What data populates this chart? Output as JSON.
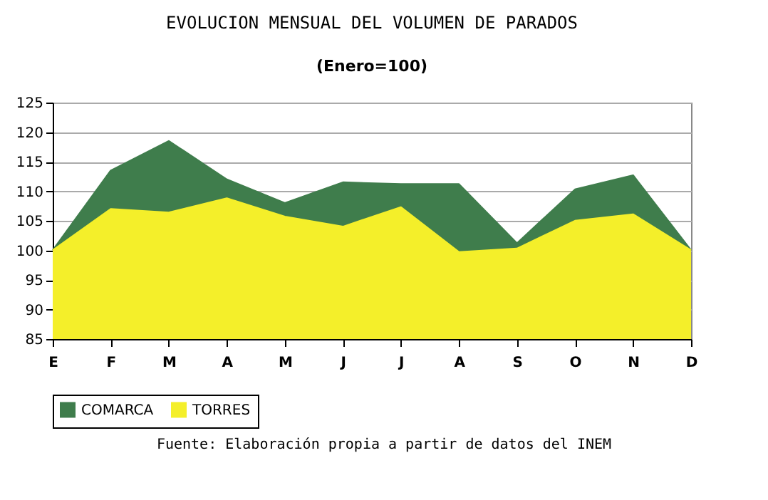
{
  "chart_data": {
    "type": "area",
    "title": "EVOLUCION MENSUAL DEL VOLUMEN DE PARADOS",
    "subtitle": "(Enero=100)",
    "categories": [
      "E",
      "F",
      "M",
      "A",
      "M",
      "J",
      "J",
      "A",
      "S",
      "O",
      "N",
      "D"
    ],
    "series": [
      {
        "name": "COMARCA",
        "color": "#3f7d4c",
        "values": [
          100,
          113.5,
          118.5,
          112,
          108,
          111.5,
          111.2,
          111.2,
          101.2,
          110.3,
          112.7,
          100
        ]
      },
      {
        "name": "TORRES",
        "color": "#f4ef2a",
        "values": [
          100,
          107,
          106.4,
          108.8,
          105.7,
          104,
          107.3,
          99.7,
          100.3,
          105,
          106.1,
          100
        ]
      }
    ],
    "ylim": [
      85,
      125
    ],
    "yticks": [
      85,
      90,
      95,
      100,
      105,
      110,
      115,
      120,
      125
    ],
    "grid": "y",
    "legend": "bottom",
    "annotations": [
      "Fuente: Elaboración propia a partir de datos del INEM"
    ]
  }
}
